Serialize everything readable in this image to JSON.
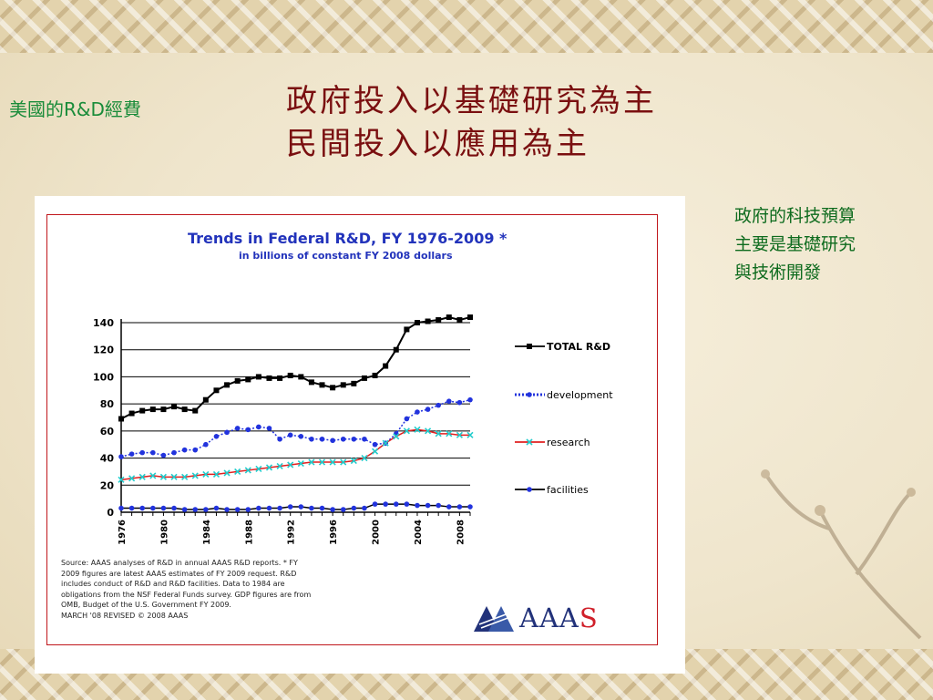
{
  "slide": {
    "small_title": "美國的R&D經費",
    "title_line1": "政府投入以基礎研究為主",
    "title_line2": "民間投入以應用為主",
    "note_line1": "政府的科技預算",
    "note_line2": "主要是基礎研究",
    "note_line3": "與技術開發"
  },
  "source_lines": [
    "Source: AAAS analyses of R&D in annual AAAS R&D reports. * FY",
    "2009 figures are latest AAAS estimates of FY 2009 request. R&D",
    "includes conduct of R&D and R&D facilities. Data to 1984 are",
    "obligations from the NSF Federal Funds survey. GDP figures are from",
    "OMB, Budget of the U.S. Government FY 2009.",
    "MARCH '08 REVISED © 2008 AAAS"
  ],
  "logo": {
    "text_main": "AAA",
    "text_last": "S"
  },
  "colors": {
    "title": "#7a0f10",
    "green": "#1a8c3a",
    "frame": "#c0161b",
    "chart_title": "#2233bb"
  },
  "chart_data": {
    "type": "line",
    "title": "Trends in Federal R&D, FY 1976-2009 *",
    "subtitle": "in billions of constant FY 2008 dollars",
    "x": [
      1976,
      1977,
      1978,
      1979,
      1980,
      1981,
      1982,
      1983,
      1984,
      1985,
      1986,
      1987,
      1988,
      1989,
      1990,
      1991,
      1992,
      1993,
      1994,
      1995,
      1996,
      1997,
      1998,
      1999,
      2000,
      2001,
      2002,
      2003,
      2004,
      2005,
      2006,
      2007,
      2008,
      2009
    ],
    "x_tick_labels": [
      "1976",
      "1980",
      "1984",
      "1988",
      "1992",
      "1996",
      "2000",
      "2004",
      "2008"
    ],
    "ylim": [
      0,
      140
    ],
    "y_ticks": [
      0,
      20,
      40,
      60,
      80,
      100,
      120,
      140
    ],
    "grid": true,
    "legend_position": "right",
    "series": [
      {
        "name": "TOTAL R&D",
        "color": "#000000",
        "marker": "square",
        "values": [
          69,
          73,
          75,
          76,
          76,
          78,
          76,
          75,
          83,
          90,
          94,
          97,
          98,
          100,
          99,
          99,
          101,
          100,
          96,
          94,
          92,
          94,
          95,
          99,
          101,
          108,
          120,
          135,
          140,
          141,
          142,
          144,
          142,
          144
        ]
      },
      {
        "name": "development",
        "color": "#2233dd",
        "marker": "dot",
        "dotted": true,
        "values": [
          41,
          43,
          44,
          44,
          42,
          44,
          46,
          46,
          50,
          56,
          59,
          62,
          61,
          63,
          62,
          54,
          57,
          56,
          54,
          54,
          53,
          54,
          54,
          54,
          50,
          51,
          58,
          69,
          74,
          76,
          79,
          82,
          81,
          83
        ]
      },
      {
        "name": "research",
        "color": "#e02020",
        "marker": "x",
        "marker_color": "#22cccc",
        "values": [
          24,
          25,
          26,
          27,
          26,
          26,
          26,
          27,
          28,
          28,
          29,
          30,
          31,
          32,
          33,
          34,
          35,
          36,
          37,
          37,
          37,
          37,
          38,
          40,
          45,
          51,
          56,
          60,
          61,
          60,
          58,
          58,
          57,
          57
        ]
      },
      {
        "name": "facilities",
        "color": "#000000",
        "marker": "dot",
        "marker_color": "#2233dd",
        "values": [
          3,
          3,
          3,
          3,
          3,
          3,
          2,
          2,
          2,
          3,
          2,
          2,
          2,
          3,
          3,
          3,
          4,
          4,
          3,
          3,
          2,
          2,
          3,
          3,
          6,
          6,
          6,
          6,
          5,
          5,
          5,
          4,
          4,
          4
        ]
      }
    ]
  }
}
